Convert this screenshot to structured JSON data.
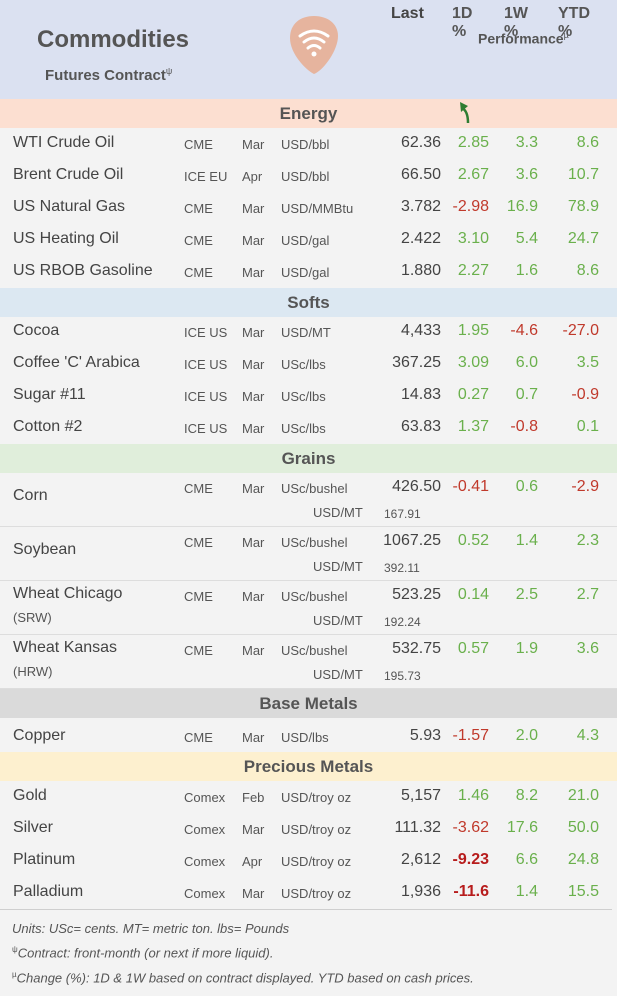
{
  "header": {
    "title": "Commodities",
    "subtitle": "Futures Contract",
    "subtitle_sup": "ψ",
    "performance": "Performance",
    "performance_sup": "µ",
    "col_last": "Last",
    "col_1d": "1D %",
    "col_1w": "1W %",
    "col_ytd": "YTD %"
  },
  "sections": {
    "energy": "Energy",
    "softs": "Softs",
    "grains": "Grains",
    "base": "Base Metals",
    "precious": "Precious Metals"
  },
  "energy": [
    {
      "name": "WTI Crude Oil",
      "exch": "CME",
      "month": "Mar",
      "unit": "USD/bbl",
      "last": "62.36",
      "d1": "2.85",
      "w1": "3.3",
      "ytd": "8.6"
    },
    {
      "name": "Brent Crude Oil",
      "exch": "ICE EU",
      "month": "Apr",
      "unit": "USD/bbl",
      "last": "66.50",
      "d1": "2.67",
      "w1": "3.6",
      "ytd": "10.7"
    },
    {
      "name": "US Natural Gas",
      "exch": "CME",
      "month": "Mar",
      "unit": "USD/MMBtu",
      "last": "3.782",
      "d1": "-2.98",
      "w1": "16.9",
      "ytd": "78.9"
    },
    {
      "name": "US Heating Oil",
      "exch": "CME",
      "month": "Mar",
      "unit": "USD/gal",
      "last": "2.422",
      "d1": "3.10",
      "w1": "5.4",
      "ytd": "24.7"
    },
    {
      "name": "US RBOB Gasoline",
      "exch": "CME",
      "month": "Mar",
      "unit": "USD/gal",
      "last": "1.880",
      "d1": "2.27",
      "w1": "1.6",
      "ytd": "8.6"
    }
  ],
  "softs": [
    {
      "name": "Cocoa",
      "exch": "ICE US",
      "month": "Mar",
      "unit": "USD/MT",
      "last": "4,433",
      "d1": "1.95",
      "w1": "-4.6",
      "ytd": "-27.0"
    },
    {
      "name": "Coffee 'C' Arabica",
      "exch": "ICE US",
      "month": "Mar",
      "unit": "USc/lbs",
      "last": "367.25",
      "d1": "3.09",
      "w1": "6.0",
      "ytd": "3.5"
    },
    {
      "name": "Sugar #11",
      "exch": "ICE US",
      "month": "Mar",
      "unit": "USc/lbs",
      "last": "14.83",
      "d1": "0.27",
      "w1": "0.7",
      "ytd": "-0.9"
    },
    {
      "name": "Cotton #2",
      "exch": "ICE US",
      "month": "Mar",
      "unit": "USc/lbs",
      "last": "63.83",
      "d1": "1.37",
      "w1": "-0.8",
      "ytd": "0.1"
    }
  ],
  "grains": [
    {
      "name": "Corn",
      "name2": "",
      "exch": "CME",
      "month": "Mar",
      "unit": "USc/bushel",
      "last": "426.50",
      "unit2": "USD/MT",
      "last2": "167.91",
      "d1": "-0.41",
      "w1": "0.6",
      "ytd": "-2.9"
    },
    {
      "name": "Soybean",
      "name2": "",
      "exch": "CME",
      "month": "Mar",
      "unit": "USc/bushel",
      "last": "1067.25",
      "unit2": "USD/MT",
      "last2": "392.11",
      "d1": "0.52",
      "w1": "1.4",
      "ytd": "2.3"
    },
    {
      "name": "Wheat Chicago",
      "name2": "(SRW)",
      "exch": "CME",
      "month": "Mar",
      "unit": "USc/bushel",
      "last": "523.25",
      "unit2": "USD/MT",
      "last2": "192.24",
      "d1": "0.14",
      "w1": "2.5",
      "ytd": "2.7"
    },
    {
      "name": "Wheat Kansas",
      "name2": "(HRW)",
      "exch": "CME",
      "month": "Mar",
      "unit": "USc/bushel",
      "last": "532.75",
      "unit2": "USD/MT",
      "last2": "195.73",
      "d1": "0.57",
      "w1": "1.9",
      "ytd": "3.6"
    }
  ],
  "base": [
    {
      "name": "Copper",
      "exch": "CME",
      "month": "Mar",
      "unit": "USD/lbs",
      "last": "5.93",
      "d1": "-1.57",
      "w1": "2.0",
      "ytd": "4.3"
    }
  ],
  "precious": [
    {
      "name": "Gold",
      "exch": "Comex",
      "month": "Feb",
      "unit": "USD/troy oz",
      "last": "5,157",
      "d1": "1.46",
      "w1": "8.2",
      "ytd": "21.0"
    },
    {
      "name": "Silver",
      "exch": "Comex",
      "month": "Mar",
      "unit": "USD/troy oz",
      "last": "111.32",
      "d1": "-3.62",
      "w1": "17.6",
      "ytd": "50.0"
    },
    {
      "name": "Platinum",
      "exch": "Comex",
      "month": "Apr",
      "unit": "USD/troy oz",
      "last": "2,612",
      "d1": "-9.23",
      "w1": "6.6",
      "ytd": "24.8"
    },
    {
      "name": "Palladium",
      "exch": "Comex",
      "month": "Mar",
      "unit": "USD/troy oz",
      "last": "1,936",
      "d1": "-11.6",
      "w1": "1.4",
      "ytd": "15.5"
    }
  ],
  "footnotes": {
    "units": "Units: USc= cents.  MT= metric ton.  lbs= Pounds",
    "contract_sup": "ψ",
    "contract": "Contract: front-month (or next if more liquid).",
    "change_sup": "µ",
    "change": "Change (%): 1D & 1W based on contract displayed. YTD based on cash prices."
  },
  "colors": {
    "positive": "#6ab04c",
    "negative": "#c0392b",
    "strong_negative": "#b71c1c",
    "logo": "#e6b49e",
    "arrow": "#2e7d32"
  },
  "icons": {
    "logo": "wifi-signal-logo-icon",
    "trend": "up-arrow-icon"
  }
}
